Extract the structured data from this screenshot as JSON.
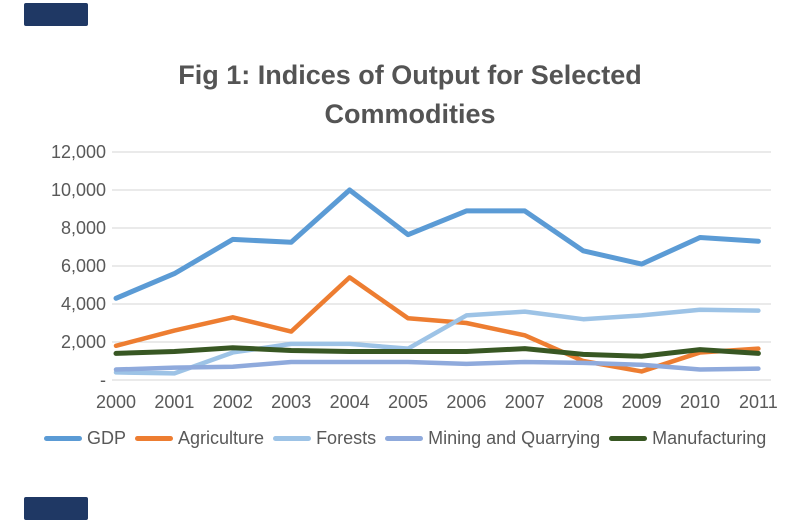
{
  "decorations": {
    "corner_accent_color": "#1F3864"
  },
  "title": {
    "lines": [
      "Fig 1: Indices of Output for Selected",
      "Commodities"
    ]
  },
  "chart_data": {
    "type": "line",
    "title": "Fig 1: Indices of Output for Selected Commodities",
    "xlabel": "",
    "ylabel": "",
    "categories": [
      "2000",
      "2001",
      "2002",
      "2003",
      "2004",
      "2005",
      "2006",
      "2007",
      "2008",
      "2009",
      "2010",
      "2011"
    ],
    "y_tick_labels": [
      "12,000",
      "10,000",
      "8,000",
      "6,000",
      "4,000",
      "2,000",
      "-"
    ],
    "ylim": [
      0,
      12000
    ],
    "y_step": 2000,
    "grid": true,
    "gridline_color": "#D6D6D6",
    "axis_text_color": "#595959",
    "legend_position": "bottom",
    "series": [
      {
        "name": "GDP",
        "color": "#5B9BD5",
        "values": [
          4300,
          5600,
          7400,
          7250,
          10000,
          7650,
          8900,
          8900,
          6800,
          6100,
          7500,
          7300
        ]
      },
      {
        "name": "Agriculture",
        "color": "#ED7D31",
        "values": [
          1800,
          2600,
          3300,
          2550,
          5400,
          3250,
          3000,
          2350,
          1000,
          450,
          1450,
          1650
        ]
      },
      {
        "name": "Forests",
        "color": "#9DC3E6",
        "values": [
          400,
          350,
          1450,
          1900,
          1900,
          1650,
          3400,
          3600,
          3200,
          3400,
          3700,
          3650
        ]
      },
      {
        "name": "Mining and Quarrying",
        "color": "#8FAADC",
        "values": [
          550,
          650,
          700,
          950,
          950,
          950,
          850,
          950,
          900,
          800,
          550,
          600
        ]
      },
      {
        "name": "Manufacturing",
        "color": "#385723",
        "values": [
          1400,
          1500,
          1700,
          1550,
          1500,
          1500,
          1500,
          1650,
          1350,
          1250,
          1600,
          1400
        ]
      }
    ]
  }
}
